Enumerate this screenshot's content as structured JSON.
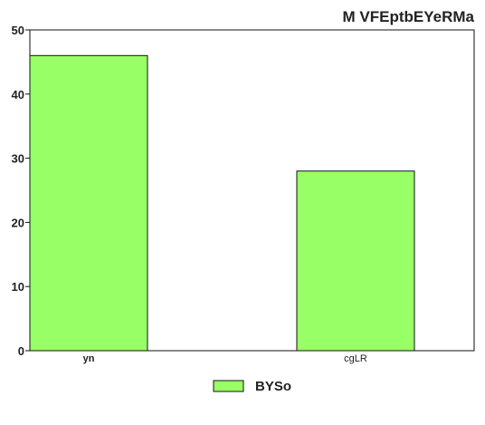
{
  "chart_data": {
    "type": "bar",
    "title": "M VFEptbEYeRMa",
    "categories": [
      "yn",
      "cgLR"
    ],
    "series": [
      {
        "name": "BYSo",
        "values": [
          46,
          28
        ]
      }
    ],
    "xlabel": "",
    "ylabel": "",
    "ylim": [
      0,
      50
    ],
    "yticks": [
      0,
      10,
      20,
      30,
      40,
      50
    ],
    "grid": false,
    "legend_position": "bottom-center",
    "colors": {
      "bar_fill": "#99ff66",
      "bar_stroke": "#111111",
      "axis": "#111111"
    }
  }
}
